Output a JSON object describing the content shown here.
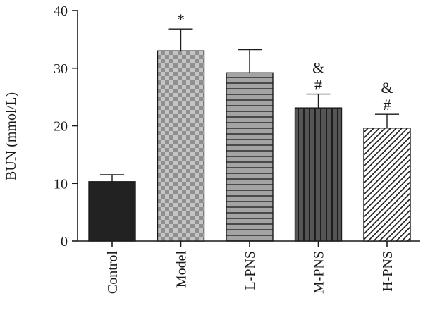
{
  "chart_data": {
    "type": "bar",
    "categories": [
      "Control",
      "Model",
      "L-PNS",
      "M-PNS",
      "H-PNS"
    ],
    "values": [
      10.3,
      33.0,
      29.2,
      23.1,
      19.6
    ],
    "error_upper": [
      11.5,
      36.8,
      33.2,
      25.5,
      22.0
    ],
    "annotations": [
      "",
      "*",
      "",
      "&\n#",
      "&\n#"
    ],
    "title": "",
    "xlabel": "",
    "ylabel": "BUN (mmol/L)",
    "ylim": [
      0,
      40
    ],
    "yticks": [
      0,
      10,
      20,
      30,
      40
    ],
    "grid": false,
    "legend": "none",
    "bar_styles": [
      {
        "pattern": "solid",
        "color": "#222222"
      },
      {
        "pattern": "checker",
        "color": "#a6a6a6"
      },
      {
        "pattern": "horizontal-lines",
        "color": "#8c8c8c"
      },
      {
        "pattern": "vertical-lines",
        "color": "#555555"
      },
      {
        "pattern": "diagonal-hatch",
        "color": "#ffffff"
      }
    ]
  }
}
